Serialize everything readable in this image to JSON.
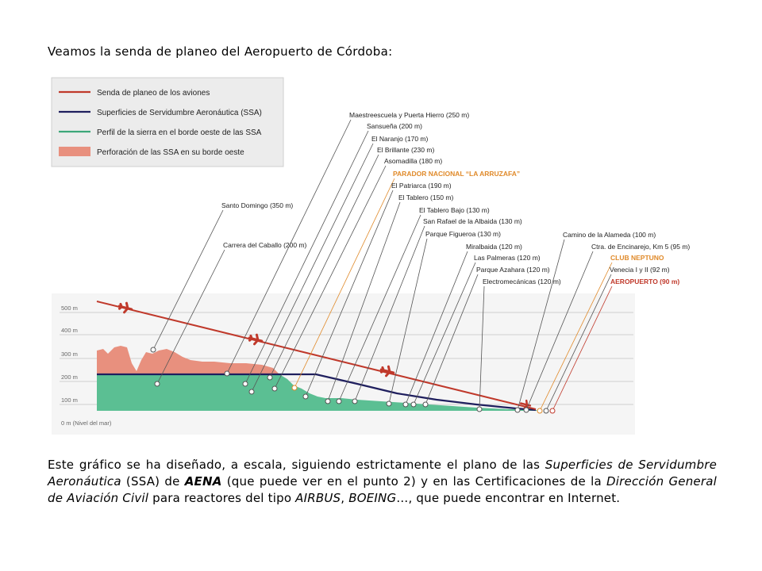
{
  "intro": "Veamos la senda de planeo del Aeropuerto de Córdoba:",
  "legend": [
    {
      "label": "Senda de planeo de los aviones",
      "color": "#c0392b",
      "kind": "line"
    },
    {
      "label": "Superficies de Servidumbre Aeronáutica (SSA)",
      "color": "#1f1f5e",
      "kind": "line"
    },
    {
      "label": "Perfil de la sierra en el borde oeste de las SSA",
      "color": "#3da779",
      "kind": "line"
    },
    {
      "label": "Perforación de las SSA en su borde oeste",
      "color": "#e8907e",
      "kind": "area"
    }
  ],
  "axis": {
    "ticks": [
      "500 m",
      "400 m",
      "300 m",
      "200 m",
      "100 m",
      "0 m (Nivel del mar)"
    ]
  },
  "locations": [
    {
      "name": "Santo Domingo (350 m)",
      "highlight": false
    },
    {
      "name": "Carrera del Caballo (200 m)",
      "highlight": false
    },
    {
      "name": "Maestreescuela y Puerta Hierro (250 m)",
      "highlight": false
    },
    {
      "name": "Sansueña (200 m)",
      "highlight": false
    },
    {
      "name": "El Naranjo (170 m)",
      "highlight": false
    },
    {
      "name": "El Brillante (230 m)",
      "highlight": false
    },
    {
      "name": "Asomadilla (180 m)",
      "highlight": false
    },
    {
      "name": "PARADOR NACIONAL “LA ARRUZAFA”",
      "highlight": "orange"
    },
    {
      "name": "El Patriarca (190 m)",
      "highlight": false
    },
    {
      "name": "El Tablero (150 m)",
      "highlight": false
    },
    {
      "name": "El Tablero Bajo (130 m)",
      "highlight": false
    },
    {
      "name": "San Rafael de la Albaida (130 m)",
      "highlight": false
    },
    {
      "name": "Parque Figueroa (130 m)",
      "highlight": false
    },
    {
      "name": "Miralbaida (120 m)",
      "highlight": false
    },
    {
      "name": "Las Palmeras (120 m)",
      "highlight": false
    },
    {
      "name": "Parque Azahara (120 m)",
      "highlight": false
    },
    {
      "name": "Electromecánicas (120 m)",
      "highlight": false
    },
    {
      "name": "Camino de la Alameda (100 m)",
      "highlight": false
    },
    {
      "name": "Ctra. de Encinarejo, Km 5 (95 m)",
      "highlight": false
    },
    {
      "name": "CLUB NEPTUNO",
      "highlight": "orange"
    },
    {
      "name": "Venecia I y II (92 m)",
      "highlight": false
    },
    {
      "name": "AEROPUERTO (90 m)",
      "highlight": "red"
    }
  ],
  "caption": {
    "p1": "Este gráfico se ha diseñado, a escala, siguiendo estrictamente el plano de las ",
    "i1": "Superficies de Servidumbre Aeronáutica",
    "p2": " (SSA) de ",
    "b1": "AENA",
    "p3": " (que puede ver en el punto 2) y en las Certificaciones de la ",
    "i2": "Dirección General de Aviación Civil",
    "p4": " para reactores del tipo ",
    "i3": "AIRBUS",
    "p5": ", ",
    "i4": "BOEING",
    "p6": "…, que puede encontrar en Internet."
  },
  "colors": {
    "glide": "#c0392b",
    "ssa": "#1f1f5e",
    "terrain": "#5bbf93",
    "perforation": "#e8907e",
    "orange": "#e08a2a",
    "leader": "#555555"
  }
}
